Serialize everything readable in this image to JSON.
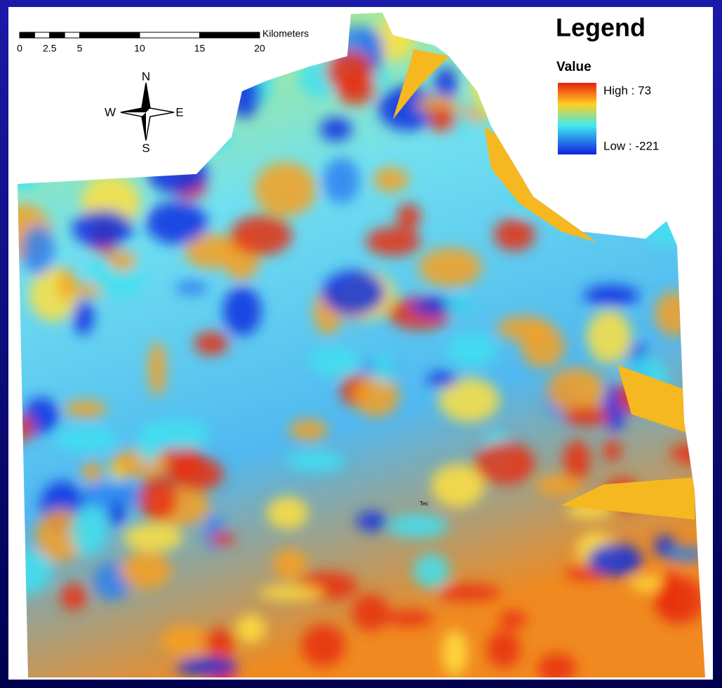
{
  "scale_bar": {
    "ticks": [
      0,
      2.5,
      5,
      10,
      15,
      20
    ],
    "unit": "Kilometers"
  },
  "compass": {
    "north": "N",
    "south": "S",
    "east": "E",
    "west": "W"
  },
  "legend": {
    "title": "Legend",
    "field": "Value",
    "high": "High : 73",
    "low": "Low : -221"
  },
  "map": {
    "label": "Tec"
  }
}
